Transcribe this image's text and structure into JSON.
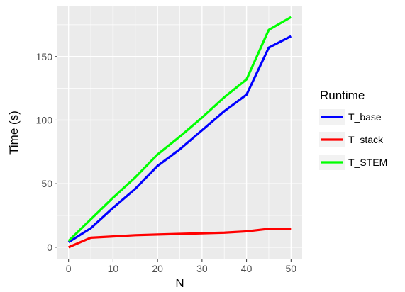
{
  "chart_data": {
    "type": "line",
    "xlabel": "N",
    "ylabel": "Time (s)",
    "xlim": [
      -2.5,
      52.5
    ],
    "ylim": [
      -9,
      190
    ],
    "xticks": [
      0,
      10,
      20,
      30,
      40,
      50
    ],
    "yticks": [
      0,
      50,
      100,
      150
    ],
    "grid": true,
    "legend": {
      "title": "Runtime",
      "position": "right"
    },
    "x": [
      0,
      5,
      10,
      15,
      20,
      25,
      30,
      35,
      40,
      45,
      50
    ],
    "series": [
      {
        "name": "T_base",
        "color": "#0000ff",
        "values": [
          4,
          15,
          31,
          46,
          64,
          77,
          92,
          107,
          120,
          157,
          166
        ]
      },
      {
        "name": "T_stack",
        "color": "#ff0000",
        "values": [
          0,
          7.5,
          8.5,
          9.5,
          10,
          10.5,
          11,
          11.5,
          12.5,
          14.5,
          14.5
        ]
      },
      {
        "name": "T_STEM",
        "color": "#00ff00",
        "values": [
          5,
          22,
          39,
          55,
          73,
          87,
          102,
          118,
          132,
          171,
          181
        ]
      }
    ]
  }
}
